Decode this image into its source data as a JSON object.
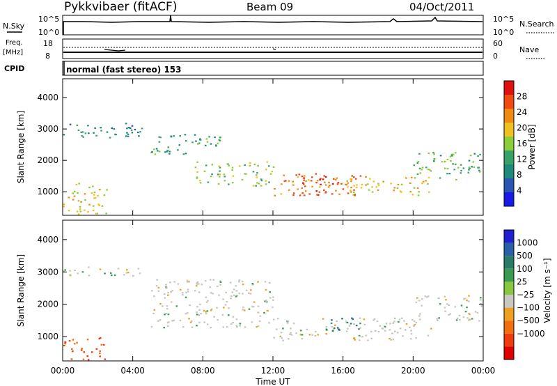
{
  "header": {
    "title": "Pykkvibaer (fitACF)",
    "beam": "Beam 09",
    "date": "04/Oct/2011"
  },
  "nsky_panel": {
    "left_label": "N.Sky",
    "right_label": "N.Search",
    "left_ticks": [
      "10^5",
      "10^0"
    ],
    "right_ticks": [
      "10^5",
      "10^0"
    ]
  },
  "freq_panel": {
    "left_label_1": "Freq.",
    "left_label_2": "[MHz]",
    "right_label": "Nave",
    "left_ticks": [
      "18",
      "8"
    ],
    "right_ticks": [
      "60",
      "0"
    ]
  },
  "cpid_panel": {
    "label": "CPID",
    "text": "normal (fast stereo) 153"
  },
  "colors": {
    "power_scale": [
      "#1a1ae6",
      "#2a55b0",
      "#1f8a7a",
      "#3aa06a",
      "#8ccd3a",
      "#f0c020",
      "#f08a10",
      "#f04a10",
      "#e01010"
    ],
    "velocity_scale": [
      "#2020d0",
      "#2a60a8",
      "#2a7a68",
      "#3a9a50",
      "#88c840",
      "#c8c8c0",
      "#f0a020",
      "#f07010",
      "#f03a10",
      "#e00000"
    ],
    "velocity_gray": "#c6c6be"
  },
  "chart_data": [
    {
      "type": "heatmap",
      "name_ref": "power",
      "ylabel": "Slant Range [km]",
      "colorbar_label": "Power [dB]",
      "yticks": [
        "1000",
        "2000",
        "3000",
        "4000"
      ],
      "ylim": [
        250,
        4600
      ],
      "xlim": [
        0,
        24
      ],
      "colorbar_ticks": [
        "4",
        "8",
        "12",
        "16",
        "20",
        "24",
        "28"
      ],
      "colorbar_range": [
        0,
        32
      ],
      "features": [
        {
          "t0": 0,
          "t1": 4.5,
          "r0": 2700,
          "r1": 3200,
          "power": 10
        },
        {
          "t0": 0,
          "t1": 2.5,
          "r0": 300,
          "r1": 1300,
          "power": 18
        },
        {
          "t0": 5,
          "t1": 9,
          "r0": 2200,
          "r1": 2900,
          "power": 12
        },
        {
          "t0": 7.5,
          "t1": 12,
          "r0": 1200,
          "r1": 2000,
          "power": 16
        },
        {
          "t0": 12,
          "t1": 17,
          "r0": 900,
          "r1": 1600,
          "power": 24
        },
        {
          "t0": 13.5,
          "t1": 15.5,
          "r0": 900,
          "r1": 1600,
          "power": 30
        },
        {
          "t0": 16,
          "t1": 21,
          "r0": 900,
          "r1": 1500,
          "power": 20
        },
        {
          "t0": 20,
          "t1": 24,
          "r0": 1400,
          "r1": 2300,
          "power": 14
        }
      ]
    },
    {
      "type": "heatmap",
      "name_ref": "velocity",
      "ylabel": "Slant Range [km]",
      "xlabel": "Time UT",
      "colorbar_label": "Velocity [m s⁻¹]",
      "yticks": [
        "1000",
        "2000",
        "3000",
        "4000"
      ],
      "xticks": [
        "00:00",
        "04:00",
        "08:00",
        "12:00",
        "16:00",
        "20:00",
        "00:00"
      ],
      "ylim": [
        250,
        4600
      ],
      "xlim": [
        0,
        24
      ],
      "colorbar_ticks": [
        "1000",
        "500",
        "100",
        "25",
        "−25",
        "−100",
        "−500",
        "−1000"
      ],
      "features": [
        {
          "t0": 0,
          "t1": 4.5,
          "r0": 2900,
          "r1": 3200,
          "velocity": 0
        },
        {
          "t0": 0,
          "t1": 2.5,
          "r0": 300,
          "r1": 1000,
          "velocity": -300
        },
        {
          "t0": 5,
          "t1": 12,
          "r0": 1300,
          "r1": 2800,
          "velocity": 0
        },
        {
          "t0": 12,
          "t1": 21,
          "r0": 900,
          "r1": 1600,
          "velocity": 0
        },
        {
          "t0": 15,
          "t1": 17,
          "r0": 1200,
          "r1": 1600,
          "velocity": 300
        },
        {
          "t0": 20,
          "t1": 24,
          "r0": 1500,
          "r1": 2300,
          "velocity": 0
        }
      ]
    }
  ]
}
